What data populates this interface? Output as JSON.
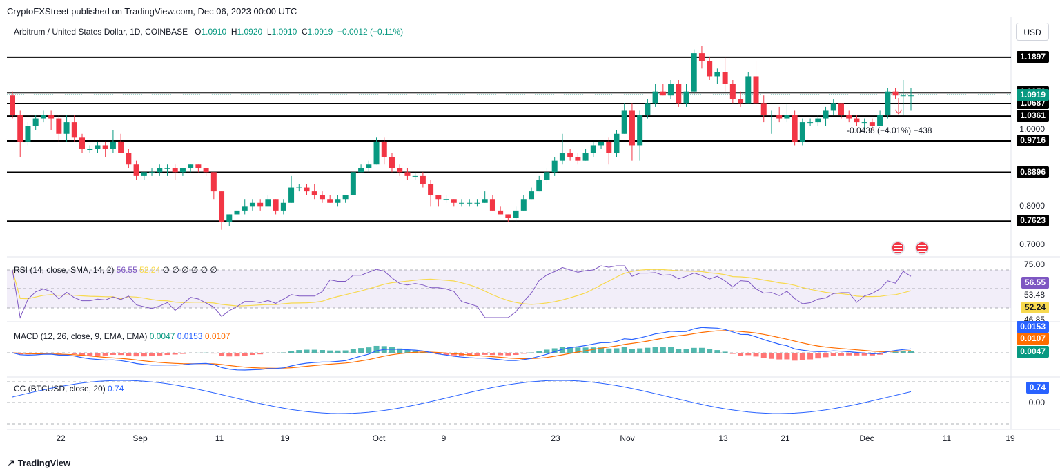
{
  "publisher": "CryptoFXStreet published on TradingView.com, Dec 06, 2023 00:00 UTC",
  "symbol_line": {
    "symbol": "Arbitrum / United States Dollar, 1D, COINBASE",
    "o_label": "O",
    "o": "1.0910",
    "h_label": "H",
    "h": "1.0920",
    "l_label": "L",
    "l": "1.0910",
    "c_label": "C",
    "c": "1.0919",
    "change": "+0.0012 (+0.11%)"
  },
  "currency_button": "USD",
  "colors": {
    "up": "#089981",
    "down": "#f23645",
    "rsi": "#7e57c2",
    "rsi_sma": "#f7d94f",
    "macd": "#2962ff",
    "signal": "#ff6d00",
    "cc": "#2962ff"
  },
  "price_axis": {
    "labels": [
      "1.0000",
      "0.8000",
      "0.7000"
    ]
  },
  "levels": [
    {
      "label": "1.1897",
      "value": 1.1897
    },
    {
      "label": "1.0972",
      "value": 1.0972
    },
    {
      "label": "1.0687",
      "value": 1.0687
    },
    {
      "label": "1.0361",
      "value": 1.0361
    },
    {
      "label": "0.9716",
      "value": 0.9716
    },
    {
      "label": "0.8896",
      "value": 0.8896
    },
    {
      "label": "0.7623",
      "value": 0.7623
    }
  ],
  "current_price": {
    "label": "1.0919",
    "value": 1.0919
  },
  "measure_label": "-0.0438 (−4.01%) −438",
  "rsi": {
    "legend": "RSI (14, close, SMA, 14, 2)",
    "value": "56.55",
    "sma": "52.24",
    "extra": "∅ ∅ ∅ ∅ ∅ ∅",
    "axis": [
      "75.00",
      "53.48",
      "46.85"
    ],
    "tags": [
      "56.55",
      "52.24"
    ]
  },
  "macd": {
    "legend": "MACD (12, 26, close, 9, EMA, EMA)",
    "hist": "0.0047",
    "macd": "0.0153",
    "signal": "0.0107",
    "tags": [
      "0.0153",
      "0.0107",
      "0.0047"
    ]
  },
  "cc": {
    "legend": "CC (BTCUSD, close, 20)",
    "value": "0.74",
    "axis": [
      "0.00"
    ],
    "tag": "0.74"
  },
  "dates": [
    "22",
    "Sep",
    "11",
    "19",
    "Oct",
    "9",
    "23",
    "Nov",
    "13",
    "21",
    "Dec",
    "11",
    "19"
  ],
  "footer": "TradingView",
  "chart_data": {
    "type": "candlestick",
    "title": "Arbitrum / United States Dollar, 1D, COINBASE",
    "y_range": [
      0.68,
      1.22
    ],
    "candles": [
      {
        "o": 1.09,
        "h": 1.1,
        "l": 1.03,
        "c": 1.04
      },
      {
        "o": 1.04,
        "h": 1.05,
        "l": 0.93,
        "c": 0.97
      },
      {
        "o": 0.97,
        "h": 1.02,
        "l": 0.96,
        "c": 1.01
      },
      {
        "o": 1.01,
        "h": 1.04,
        "l": 1.0,
        "c": 1.03
      },
      {
        "o": 1.03,
        "h": 1.05,
        "l": 1.02,
        "c": 1.04
      },
      {
        "o": 1.04,
        "h": 1.05,
        "l": 1.0,
        "c": 1.03
      },
      {
        "o": 1.03,
        "h": 1.04,
        "l": 0.97,
        "c": 0.99
      },
      {
        "o": 0.99,
        "h": 1.04,
        "l": 0.97,
        "c": 1.02
      },
      {
        "o": 1.02,
        "h": 1.04,
        "l": 0.97,
        "c": 0.98
      },
      {
        "o": 0.98,
        "h": 0.99,
        "l": 0.94,
        "c": 0.95
      },
      {
        "o": 0.95,
        "h": 0.96,
        "l": 0.94,
        "c": 0.95
      },
      {
        "o": 0.95,
        "h": 0.97,
        "l": 0.94,
        "c": 0.96
      },
      {
        "o": 0.96,
        "h": 0.97,
        "l": 0.93,
        "c": 0.95
      },
      {
        "o": 0.95,
        "h": 1.0,
        "l": 0.94,
        "c": 0.97
      },
      {
        "o": 0.97,
        "h": 0.99,
        "l": 0.94,
        "c": 0.94
      },
      {
        "o": 0.94,
        "h": 0.95,
        "l": 0.9,
        "c": 0.91
      },
      {
        "o": 0.91,
        "h": 0.92,
        "l": 0.87,
        "c": 0.88
      },
      {
        "o": 0.88,
        "h": 0.89,
        "l": 0.87,
        "c": 0.89
      },
      {
        "o": 0.89,
        "h": 0.9,
        "l": 0.88,
        "c": 0.89
      },
      {
        "o": 0.89,
        "h": 0.91,
        "l": 0.88,
        "c": 0.9
      },
      {
        "o": 0.9,
        "h": 0.91,
        "l": 0.88,
        "c": 0.9
      },
      {
        "o": 0.9,
        "h": 0.91,
        "l": 0.87,
        "c": 0.89
      },
      {
        "o": 0.89,
        "h": 0.9,
        "l": 0.88,
        "c": 0.9
      },
      {
        "o": 0.9,
        "h": 0.91,
        "l": 0.89,
        "c": 0.91
      },
      {
        "o": 0.91,
        "h": 0.91,
        "l": 0.89,
        "c": 0.9
      },
      {
        "o": 0.9,
        "h": 0.9,
        "l": 0.88,
        "c": 0.89
      },
      {
        "o": 0.89,
        "h": 0.89,
        "l": 0.82,
        "c": 0.84
      },
      {
        "o": 0.84,
        "h": 0.84,
        "l": 0.74,
        "c": 0.76
      },
      {
        "o": 0.76,
        "h": 0.78,
        "l": 0.75,
        "c": 0.78
      },
      {
        "o": 0.78,
        "h": 0.81,
        "l": 0.77,
        "c": 0.79
      },
      {
        "o": 0.79,
        "h": 0.82,
        "l": 0.78,
        "c": 0.8
      },
      {
        "o": 0.8,
        "h": 0.82,
        "l": 0.79,
        "c": 0.81
      },
      {
        "o": 0.81,
        "h": 0.82,
        "l": 0.79,
        "c": 0.8
      },
      {
        "o": 0.8,
        "h": 0.83,
        "l": 0.8,
        "c": 0.82
      },
      {
        "o": 0.82,
        "h": 0.82,
        "l": 0.78,
        "c": 0.79
      },
      {
        "o": 0.79,
        "h": 0.82,
        "l": 0.78,
        "c": 0.81
      },
      {
        "o": 0.81,
        "h": 0.88,
        "l": 0.81,
        "c": 0.85
      },
      {
        "o": 0.85,
        "h": 0.86,
        "l": 0.84,
        "c": 0.85
      },
      {
        "o": 0.85,
        "h": 0.86,
        "l": 0.83,
        "c": 0.84
      },
      {
        "o": 0.84,
        "h": 0.86,
        "l": 0.82,
        "c": 0.83
      },
      {
        "o": 0.83,
        "h": 0.84,
        "l": 0.81,
        "c": 0.82
      },
      {
        "o": 0.82,
        "h": 0.83,
        "l": 0.81,
        "c": 0.81
      },
      {
        "o": 0.81,
        "h": 0.83,
        "l": 0.8,
        "c": 0.82
      },
      {
        "o": 0.82,
        "h": 0.83,
        "l": 0.81,
        "c": 0.83
      },
      {
        "o": 0.83,
        "h": 0.89,
        "l": 0.83,
        "c": 0.89
      },
      {
        "o": 0.89,
        "h": 0.91,
        "l": 0.89,
        "c": 0.9
      },
      {
        "o": 0.9,
        "h": 0.92,
        "l": 0.89,
        "c": 0.91
      },
      {
        "o": 0.91,
        "h": 0.98,
        "l": 0.91,
        "c": 0.97
      },
      {
        "o": 0.97,
        "h": 0.98,
        "l": 0.91,
        "c": 0.93
      },
      {
        "o": 0.93,
        "h": 0.94,
        "l": 0.89,
        "c": 0.9
      },
      {
        "o": 0.9,
        "h": 0.91,
        "l": 0.88,
        "c": 0.89
      },
      {
        "o": 0.89,
        "h": 0.9,
        "l": 0.87,
        "c": 0.88
      },
      {
        "o": 0.88,
        "h": 0.89,
        "l": 0.87,
        "c": 0.88
      },
      {
        "o": 0.88,
        "h": 0.89,
        "l": 0.85,
        "c": 0.86
      },
      {
        "o": 0.86,
        "h": 0.87,
        "l": 0.8,
        "c": 0.83
      },
      {
        "o": 0.83,
        "h": 0.83,
        "l": 0.8,
        "c": 0.82
      },
      {
        "o": 0.82,
        "h": 0.83,
        "l": 0.81,
        "c": 0.82
      },
      {
        "o": 0.82,
        "h": 0.82,
        "l": 0.8,
        "c": 0.81
      },
      {
        "o": 0.81,
        "h": 0.82,
        "l": 0.8,
        "c": 0.81
      },
      {
        "o": 0.81,
        "h": 0.82,
        "l": 0.8,
        "c": 0.81
      },
      {
        "o": 0.81,
        "h": 0.82,
        "l": 0.8,
        "c": 0.81
      },
      {
        "o": 0.81,
        "h": 0.84,
        "l": 0.81,
        "c": 0.82
      },
      {
        "o": 0.82,
        "h": 0.83,
        "l": 0.79,
        "c": 0.79
      },
      {
        "o": 0.79,
        "h": 0.8,
        "l": 0.78,
        "c": 0.78
      },
      {
        "o": 0.78,
        "h": 0.78,
        "l": 0.76,
        "c": 0.77
      },
      {
        "o": 0.77,
        "h": 0.8,
        "l": 0.76,
        "c": 0.79
      },
      {
        "o": 0.79,
        "h": 0.83,
        "l": 0.79,
        "c": 0.82
      },
      {
        "o": 0.82,
        "h": 0.85,
        "l": 0.82,
        "c": 0.84
      },
      {
        "o": 0.84,
        "h": 0.88,
        "l": 0.84,
        "c": 0.87
      },
      {
        "o": 0.87,
        "h": 0.9,
        "l": 0.86,
        "c": 0.89
      },
      {
        "o": 0.89,
        "h": 0.93,
        "l": 0.88,
        "c": 0.92
      },
      {
        "o": 0.92,
        "h": 0.99,
        "l": 0.91,
        "c": 0.94
      },
      {
        "o": 0.94,
        "h": 0.95,
        "l": 0.92,
        "c": 0.93
      },
      {
        "o": 0.93,
        "h": 0.94,
        "l": 0.91,
        "c": 0.92
      },
      {
        "o": 0.92,
        "h": 0.95,
        "l": 0.92,
        "c": 0.94
      },
      {
        "o": 0.94,
        "h": 0.97,
        "l": 0.93,
        "c": 0.96
      },
      {
        "o": 0.96,
        "h": 0.97,
        "l": 0.95,
        "c": 0.97
      },
      {
        "o": 0.97,
        "h": 0.98,
        "l": 0.91,
        "c": 0.94
      },
      {
        "o": 0.94,
        "h": 1.0,
        "l": 0.93,
        "c": 0.99
      },
      {
        "o": 0.99,
        "h": 1.07,
        "l": 0.99,
        "c": 1.05
      },
      {
        "o": 1.05,
        "h": 1.07,
        "l": 0.92,
        "c": 0.96
      },
      {
        "o": 0.96,
        "h": 1.05,
        "l": 0.92,
        "c": 1.04
      },
      {
        "o": 1.04,
        "h": 1.08,
        "l": 1.03,
        "c": 1.07
      },
      {
        "o": 1.07,
        "h": 1.12,
        "l": 1.06,
        "c": 1.1
      },
      {
        "o": 1.1,
        "h": 1.12,
        "l": 1.09,
        "c": 1.09
      },
      {
        "o": 1.09,
        "h": 1.13,
        "l": 1.08,
        "c": 1.12
      },
      {
        "o": 1.12,
        "h": 1.13,
        "l": 1.06,
        "c": 1.07
      },
      {
        "o": 1.07,
        "h": 1.12,
        "l": 1.06,
        "c": 1.1
      },
      {
        "o": 1.1,
        "h": 1.21,
        "l": 1.09,
        "c": 1.2
      },
      {
        "o": 1.2,
        "h": 1.22,
        "l": 1.16,
        "c": 1.18
      },
      {
        "o": 1.18,
        "h": 1.19,
        "l": 1.13,
        "c": 1.14
      },
      {
        "o": 1.14,
        "h": 1.16,
        "l": 1.12,
        "c": 1.15
      },
      {
        "o": 1.15,
        "h": 1.19,
        "l": 1.1,
        "c": 1.12
      },
      {
        "o": 1.12,
        "h": 1.13,
        "l": 1.07,
        "c": 1.08
      },
      {
        "o": 1.08,
        "h": 1.1,
        "l": 1.06,
        "c": 1.07
      },
      {
        "o": 1.07,
        "h": 1.15,
        "l": 1.07,
        "c": 1.14
      },
      {
        "o": 1.14,
        "h": 1.18,
        "l": 1.06,
        "c": 1.07
      },
      {
        "o": 1.07,
        "h": 1.09,
        "l": 1.02,
        "c": 1.04
      },
      {
        "o": 1.04,
        "h": 1.05,
        "l": 0.99,
        "c": 1.04
      },
      {
        "o": 1.04,
        "h": 1.06,
        "l": 1.02,
        "c": 1.03
      },
      {
        "o": 1.03,
        "h": 1.07,
        "l": 1.02,
        "c": 1.04
      },
      {
        "o": 1.04,
        "h": 1.05,
        "l": 0.96,
        "c": 0.97
      },
      {
        "o": 0.97,
        "h": 1.03,
        "l": 0.96,
        "c": 1.02
      },
      {
        "o": 1.02,
        "h": 1.03,
        "l": 1.01,
        "c": 1.02
      },
      {
        "o": 1.02,
        "h": 1.04,
        "l": 1.01,
        "c": 1.03
      },
      {
        "o": 1.03,
        "h": 1.06,
        "l": 1.01,
        "c": 1.05
      },
      {
        "o": 1.05,
        "h": 1.08,
        "l": 1.04,
        "c": 1.07
      },
      {
        "o": 1.07,
        "h": 1.07,
        "l": 1.03,
        "c": 1.04
      },
      {
        "o": 1.04,
        "h": 1.05,
        "l": 1.02,
        "c": 1.03
      },
      {
        "o": 1.03,
        "h": 1.04,
        "l": 1.01,
        "c": 1.02
      },
      {
        "o": 1.02,
        "h": 1.03,
        "l": 1.0,
        "c": 1.02
      },
      {
        "o": 1.02,
        "h": 1.03,
        "l": 1.0,
        "c": 1.01
      },
      {
        "o": 1.01,
        "h": 1.05,
        "l": 1.01,
        "c": 1.04
      },
      {
        "o": 1.04,
        "h": 1.11,
        "l": 1.03,
        "c": 1.1
      },
      {
        "o": 1.1,
        "h": 1.11,
        "l": 1.08,
        "c": 1.09
      },
      {
        "o": 1.09,
        "h": 1.13,
        "l": 1.04,
        "c": 1.09
      },
      {
        "o": 1.09,
        "h": 1.11,
        "l": 1.05,
        "c": 1.09
      }
    ]
  }
}
